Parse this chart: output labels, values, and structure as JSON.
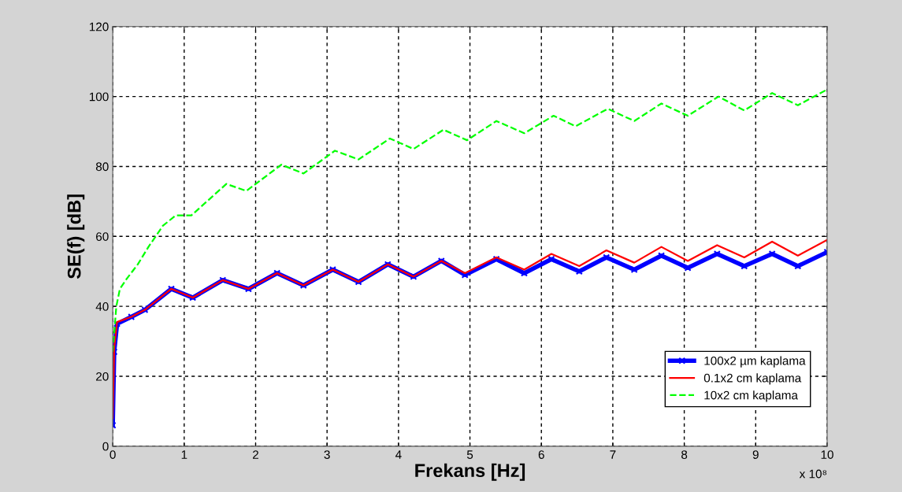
{
  "chart_data": {
    "type": "line",
    "xlabel": "Frekans [Hz]",
    "ylabel": "SE(f) [dB]",
    "xlim": [
      0,
      10
    ],
    "ylim": [
      0,
      120
    ],
    "xticks": [
      0,
      1,
      2,
      3,
      4,
      5,
      6,
      7,
      8,
      9,
      10
    ],
    "yticks": [
      0,
      20,
      40,
      60,
      80,
      100,
      120
    ],
    "grid": true,
    "legend": "bottom right",
    "annotations": [
      "x 10⁸"
    ],
    "series": [
      {
        "name": "100x2 µm kaplama",
        "color": "#0000ff",
        "marker": "cross",
        "line_style": "solid",
        "x": [
          0,
          0.02,
          0.06,
          0.26,
          0.45,
          0.82,
          1.12,
          1.54,
          1.9,
          2.3,
          2.67,
          3.08,
          3.44,
          3.85,
          4.21,
          4.6,
          4.93,
          5.37,
          5.76,
          6.14,
          6.53,
          6.91,
          7.3,
          7.68,
          8.05,
          8.46,
          8.84,
          9.23,
          9.59,
          10
        ],
        "values": [
          6,
          27,
          35,
          37,
          39,
          45,
          42.5,
          47.5,
          45,
          49.5,
          46,
          50.5,
          47,
          52,
          48.5,
          53,
          49,
          53.5,
          49.5,
          53.5,
          50,
          54,
          50.5,
          54.5,
          51,
          55,
          51.5,
          55,
          51.5,
          55.5
        ]
      },
      {
        "name": "0.1x2 cm kaplama",
        "color": "#ff0000",
        "marker": "none",
        "line_style": "solid",
        "x": [
          0,
          0.02,
          0.06,
          0.26,
          0.45,
          0.82,
          1.12,
          1.54,
          1.9,
          2.3,
          2.67,
          3.08,
          3.44,
          3.85,
          4.21,
          4.6,
          4.93,
          5.37,
          5.76,
          6.14,
          6.53,
          6.91,
          7.3,
          7.68,
          8.05,
          8.46,
          8.84,
          9.23,
          9.59,
          10
        ],
        "values": [
          8,
          28,
          35.5,
          37,
          39,
          45,
          42.5,
          47.5,
          45,
          49.5,
          46,
          50.5,
          47,
          52,
          48.5,
          53,
          49.5,
          54,
          50.5,
          55,
          51.5,
          56,
          52.5,
          57,
          53,
          57.5,
          54,
          58.5,
          54.5,
          59
        ]
      },
      {
        "name": "10x2 cm kaplama",
        "color": "#00ff00",
        "marker": "none",
        "line_style": "dashed",
        "x": [
          0,
          0.05,
          0.1,
          0.2,
          0.35,
          0.5,
          0.7,
          0.88,
          1.1,
          1.59,
          1.87,
          2.36,
          2.67,
          3.11,
          3.44,
          3.88,
          4.21,
          4.63,
          4.96,
          5.37,
          5.76,
          6.17,
          6.48,
          6.93,
          7.3,
          7.68,
          8.05,
          8.48,
          8.84,
          9.23,
          9.59,
          10
        ],
        "values": [
          27,
          40,
          45,
          48,
          52,
          57,
          63,
          66,
          66,
          75,
          73,
          80.5,
          78,
          84.5,
          82,
          88,
          85,
          90.5,
          87.5,
          93,
          89.5,
          94.5,
          91.5,
          96.5,
          93,
          98,
          94.5,
          100,
          96,
          101,
          97.5,
          102
        ]
      }
    ]
  }
}
